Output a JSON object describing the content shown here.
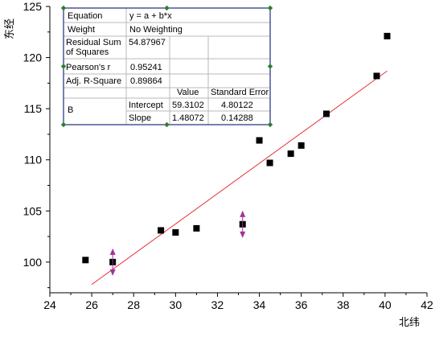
{
  "chart_data": {
    "type": "scatter",
    "title": "",
    "xlabel": "北纬",
    "ylabel": "东经",
    "xlim": [
      24,
      42
    ],
    "ylim": [
      97,
      125
    ],
    "xticks": [
      "24",
      "26",
      "28",
      "30",
      "32",
      "34",
      "36",
      "38",
      "40",
      "42"
    ],
    "yticks": [
      "100",
      "105",
      "110",
      "115",
      "120",
      "125"
    ],
    "grid": false,
    "series": [
      {
        "points": [
          {
            "x": 25.7,
            "y": 100.2
          },
          {
            "x": 27.0,
            "y": 100.0
          },
          {
            "x": 29.3,
            "y": 103.1
          },
          {
            "x": 30.0,
            "y": 102.9
          },
          {
            "x": 31.0,
            "y": 103.3
          },
          {
            "x": 33.2,
            "y": 103.7
          },
          {
            "x": 34.0,
            "y": 111.9
          },
          {
            "x": 34.5,
            "y": 109.7
          },
          {
            "x": 35.5,
            "y": 110.6
          },
          {
            "x": 36.0,
            "y": 111.4
          },
          {
            "x": 37.2,
            "y": 114.5
          },
          {
            "x": 39.6,
            "y": 118.2
          },
          {
            "x": 40.1,
            "y": 122.1
          }
        ]
      }
    ],
    "fit_line": {
      "intercept": 59.3102,
      "slope": 1.48072,
      "x_range": [
        26.0,
        40.1
      ],
      "color": "#e8303a"
    },
    "marker_color": "#000000",
    "handle_color": "#a0339a",
    "selection_handle_points": [
      {
        "x": 27.0,
        "y": 100.0
      },
      {
        "x": 33.2,
        "y": 103.7
      }
    ],
    "stats_table": {
      "rows": [
        [
          "Equation",
          "y = a + b*x",
          "",
          ""
        ],
        [
          "Weight",
          "No Weighting",
          "",
          ""
        ],
        [
          "Residual Sum of Squares",
          "54.87967",
          "",
          ""
        ],
        [
          "Pearson's r",
          "0.95241",
          "",
          ""
        ],
        [
          "Adj. R-Square",
          "0.89864",
          "",
          ""
        ]
      ],
      "coef_header": [
        "",
        "",
        "Value",
        "Standard Error"
      ],
      "coef_group": "B",
      "coef_rows": [
        [
          "Intercept",
          "59.3102",
          "4.80122"
        ],
        [
          "Slope",
          "1.48072",
          "0.14288"
        ]
      ],
      "border_color": "#1f2a80",
      "handle_color": "#2e7d32"
    }
  }
}
